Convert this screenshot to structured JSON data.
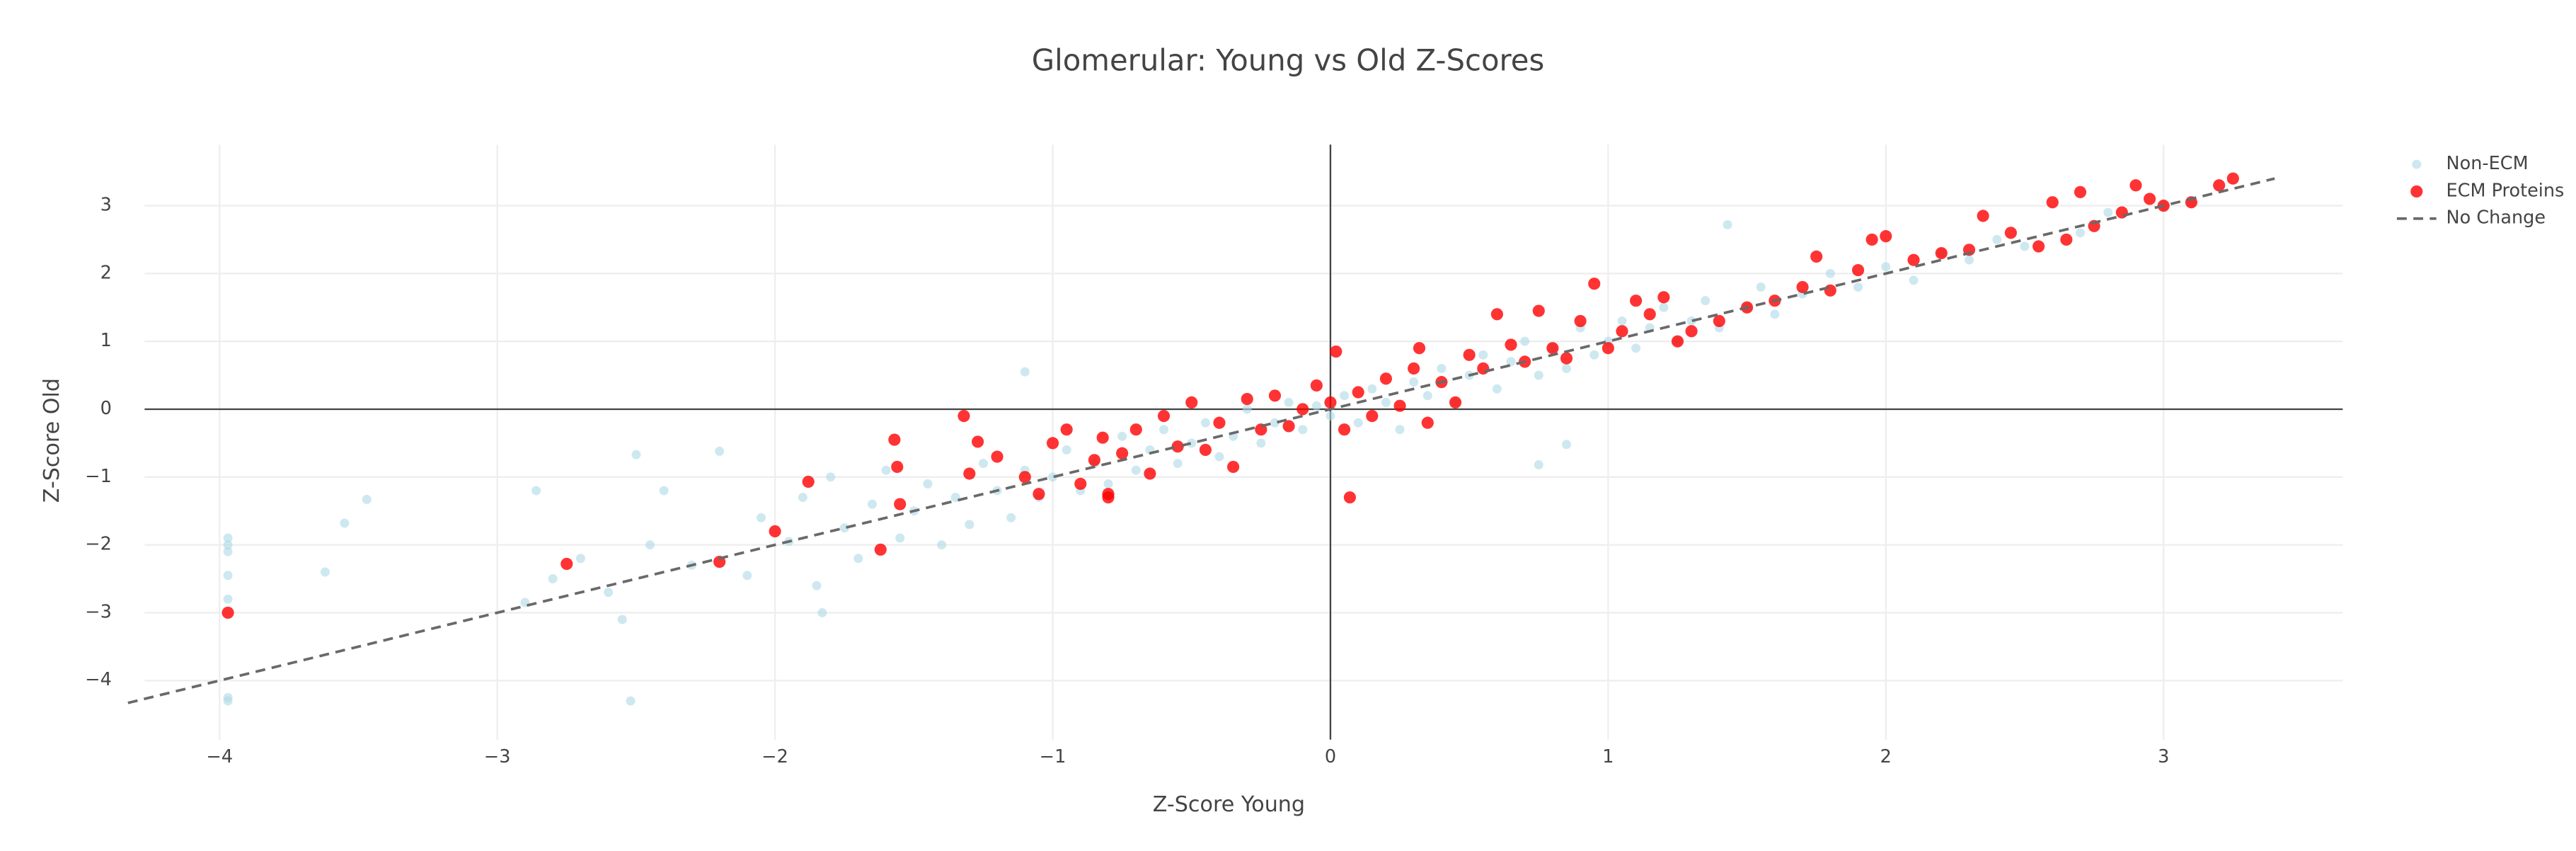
{
  "chart_data": {
    "type": "scatter",
    "title": "Glomerular: Young vs Old Z-Scores",
    "x_label": "Z-Score Young",
    "y_label": "Z-Score Old",
    "xlim": [
      -4.27,
      3.645
    ],
    "ylim": [
      -4.87,
      3.9
    ],
    "xticks": [
      {
        "value": -4,
        "label": "−4"
      },
      {
        "value": -3,
        "label": "−3"
      },
      {
        "value": -2,
        "label": "−2"
      },
      {
        "value": -1,
        "label": "−1"
      },
      0,
      1,
      2,
      3
    ],
    "yticks": [
      {
        "value": -4,
        "label": "−4"
      },
      {
        "value": -3,
        "label": "−3"
      },
      {
        "value": -2,
        "label": "−2"
      },
      {
        "value": -1,
        "label": "−1"
      },
      0,
      1,
      2,
      3
    ],
    "grid": true,
    "legend": "top-right",
    "series": [
      {
        "name": "Non-ECM",
        "mode": "markers",
        "color": "#add8e6",
        "x": [
          -2.9,
          -2.8,
          -2.7,
          -2.6,
          -2.55,
          -2.45,
          -2.4,
          -2.3,
          -2.2,
          -2.1,
          -2.05,
          -1.95,
          -1.9,
          -1.85,
          -1.8,
          -1.75,
          -1.7,
          -1.65,
          -1.6,
          -1.55,
          -1.5,
          -1.45,
          -1.4,
          -1.35,
          -1.3,
          -1.25,
          -1.2,
          -1.15,
          -1.1,
          -1.05,
          -1.0,
          -0.95,
          -0.9,
          -0.85,
          -0.8,
          -0.75,
          -0.7,
          -0.65,
          -0.6,
          -0.55,
          -0.5,
          -0.45,
          -0.4,
          -0.35,
          -0.3,
          -0.25,
          -0.2,
          -0.15,
          -0.1,
          -0.05,
          0.0,
          0.05,
          0.1,
          0.15,
          0.2,
          0.25,
          0.3,
          0.35,
          0.4,
          0.45,
          0.5,
          0.55,
          0.6,
          0.65,
          0.7,
          0.75,
          0.8,
          0.85,
          0.9,
          0.95,
          1.0,
          1.05,
          1.1,
          1.15,
          1.2,
          1.25,
          1.3,
          1.35,
          1.4,
          1.5,
          1.55,
          1.6,
          1.7,
          1.8,
          1.9,
          2.0,
          2.1,
          2.2,
          2.3,
          2.4,
          2.5,
          2.7,
          2.8,
          3.0,
          3.1,
          -3.97,
          -3.97,
          -3.97,
          -3.97,
          -3.97,
          -3.97,
          -3.97,
          -3.62,
          -3.55,
          -3.47,
          -2.52,
          -2.5,
          -2.86,
          -1.83,
          1.43,
          -1.1,
          0.85,
          0.75
        ],
        "values": [
          -2.85,
          -2.5,
          -2.2,
          -2.7,
          -3.1,
          -2.0,
          -1.2,
          -2.3,
          -0.62,
          -2.45,
          -1.6,
          -1.95,
          -1.3,
          -2.6,
          -1.0,
          -1.75,
          -2.2,
          -1.4,
          -0.9,
          -1.9,
          -1.5,
          -1.1,
          -2.0,
          -1.3,
          -1.7,
          -0.8,
          -1.2,
          -1.6,
          -0.9,
          -1.3,
          -1.0,
          -0.6,
          -1.2,
          -0.8,
          -1.1,
          -0.4,
          -0.9,
          -0.6,
          -0.3,
          -0.8,
          -0.5,
          -0.2,
          -0.7,
          -0.4,
          0.0,
          -0.5,
          -0.2,
          0.1,
          -0.3,
          0.05,
          -0.1,
          0.2,
          -0.2,
          0.3,
          0.1,
          -0.3,
          0.4,
          0.2,
          0.6,
          0.1,
          0.5,
          0.8,
          0.3,
          0.7,
          1.0,
          0.5,
          0.9,
          0.6,
          1.2,
          0.8,
          1.0,
          1.3,
          0.9,
          1.2,
          1.5,
          1.0,
          1.3,
          1.6,
          1.2,
          1.5,
          1.8,
          1.4,
          1.7,
          2.0,
          1.8,
          2.1,
          1.9,
          2.3,
          2.2,
          2.5,
          2.4,
          2.6,
          2.9,
          3.0,
          3.05,
          -1.9,
          -2.0,
          -2.1,
          -2.45,
          -2.8,
          -4.25,
          -4.3,
          -2.4,
          -1.68,
          -1.33,
          -4.3,
          -0.67,
          -1.2,
          -3.0,
          2.72,
          0.55,
          -0.52,
          -0.82
        ]
      },
      {
        "name": "ECM Proteins",
        "mode": "markers",
        "color": "#ff0000",
        "x": [
          -3.97,
          -2.75,
          -2.2,
          -2.0,
          -1.88,
          -1.62,
          -1.57,
          -1.56,
          -1.55,
          -1.32,
          -1.3,
          -1.27,
          -1.2,
          -1.1,
          -1.05,
          -1.0,
          -0.95,
          -0.9,
          -0.85,
          -0.82,
          -0.8,
          -0.8,
          -0.75,
          -0.7,
          -0.65,
          -0.6,
          -0.55,
          -0.5,
          -0.45,
          -0.4,
          -0.35,
          -0.3,
          -0.25,
          -0.2,
          -0.15,
          -0.1,
          -0.05,
          0.0,
          0.02,
          0.05,
          0.07,
          0.1,
          0.15,
          0.2,
          0.25,
          0.3,
          0.32,
          0.35,
          0.4,
          0.45,
          0.5,
          0.55,
          0.6,
          0.65,
          0.7,
          0.75,
          0.8,
          0.85,
          0.9,
          0.95,
          1.0,
          1.05,
          1.1,
          1.15,
          1.2,
          1.25,
          1.3,
          1.4,
          1.5,
          1.6,
          1.7,
          1.75,
          1.8,
          1.9,
          1.95,
          2.0,
          2.1,
          2.2,
          2.3,
          2.35,
          2.45,
          2.55,
          2.6,
          2.65,
          2.7,
          2.75,
          2.85,
          2.9,
          2.95,
          3.0,
          3.1,
          3.2,
          3.25
        ],
        "values": [
          -3.0,
          -2.28,
          -2.25,
          -1.8,
          -1.07,
          -2.07,
          -0.45,
          -0.85,
          -1.4,
          -0.1,
          -0.95,
          -0.48,
          -0.7,
          -1.0,
          -1.25,
          -0.5,
          -0.3,
          -1.1,
          -0.75,
          -0.42,
          -1.25,
          -1.3,
          -0.65,
          -0.3,
          -0.95,
          -0.1,
          -0.55,
          0.1,
          -0.6,
          -0.2,
          -0.85,
          0.15,
          -0.3,
          0.2,
          -0.25,
          0.0,
          0.35,
          0.1,
          0.85,
          -0.3,
          -1.3,
          0.25,
          -0.1,
          0.45,
          0.05,
          0.6,
          0.9,
          -0.2,
          0.4,
          0.1,
          0.8,
          0.6,
          1.4,
          0.95,
          0.7,
          1.45,
          0.9,
          0.75,
          1.3,
          1.85,
          0.9,
          1.15,
          1.6,
          1.4,
          1.65,
          1.0,
          1.15,
          1.3,
          1.5,
          1.6,
          1.8,
          2.25,
          1.75,
          2.05,
          2.5,
          2.55,
          2.2,
          2.3,
          2.35,
          2.85,
          2.6,
          2.4,
          3.05,
          2.5,
          3.2,
          2.7,
          2.9,
          3.3,
          3.1,
          3.0,
          3.05,
          3.3,
          3.4
        ]
      },
      {
        "name": "No Change",
        "mode": "lines",
        "color": "#696969",
        "x": [
          -4.33,
          3.4
        ],
        "values": [
          -4.33,
          3.4
        ]
      }
    ]
  }
}
